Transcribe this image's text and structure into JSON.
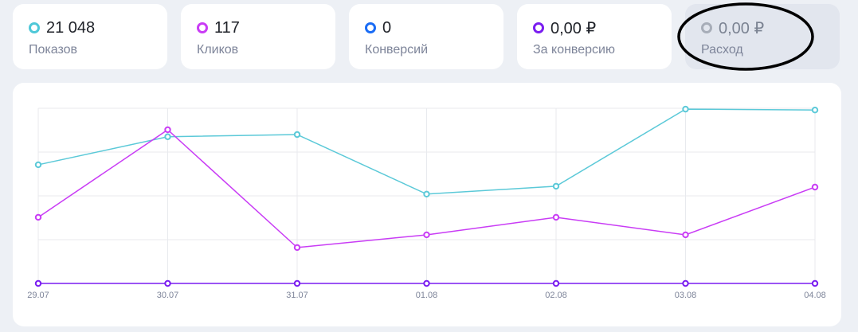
{
  "metrics": [
    {
      "value": "21 048",
      "label": "Показов",
      "color": "#4fc8d8",
      "active": true
    },
    {
      "value": "117",
      "label": "Кликов",
      "color": "#c93cf5",
      "active": true
    },
    {
      "value": "0",
      "label": "Конверсий",
      "color": "#1a6cf5",
      "active": true
    },
    {
      "value": "0,00 ₽",
      "label": "За конверсию",
      "color": "#7a1df0",
      "active": true
    },
    {
      "value": "0,00 ₽",
      "label": "Расход",
      "color": "#a7adb8",
      "active": false
    }
  ],
  "chart_data": {
    "type": "line",
    "x": [
      "29.07",
      "30.07",
      "31.07",
      "01.08",
      "02.08",
      "03.08",
      "04.08"
    ],
    "ylim": [
      0,
      4
    ],
    "grid": true,
    "series": [
      {
        "name": "Показов",
        "color": "#5bc9d8",
        "values": [
          2.71,
          3.35,
          3.4,
          2.04,
          2.22,
          3.98,
          3.96
        ]
      },
      {
        "name": "Кликов",
        "color": "#c93cf5",
        "values": [
          1.51,
          3.51,
          0.82,
          1.11,
          1.51,
          1.11,
          2.2
        ]
      },
      {
        "name": "За конверсию",
        "color": "#7a1df0",
        "values": [
          0,
          0,
          0,
          0,
          0,
          0,
          0
        ]
      }
    ]
  }
}
